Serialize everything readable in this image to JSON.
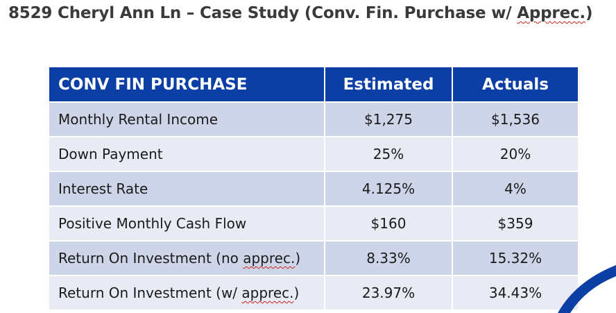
{
  "slide": {
    "title_main": "8529 Cheryl Ann Ln – Case Study (Conv. Fin. Purchase w/ ",
    "title_flagged": "Apprec.",
    "title_end": ")"
  },
  "table": {
    "headers": [
      "CONV FIN PURCHASE",
      "Estimated",
      "Actuals"
    ],
    "rows": [
      {
        "label": "Monthly Rental Income",
        "estimated": "$1,275",
        "actual": "$1,536"
      },
      {
        "label": "Down Payment",
        "estimated": "25%",
        "actual": "20%"
      },
      {
        "label": "Interest Rate",
        "estimated": "4.125%",
        "actual": "4%"
      },
      {
        "label": "Positive Monthly Cash Flow",
        "estimated": "$160",
        "actual": "$359"
      },
      {
        "label_pre": "Return On Investment (no ",
        "label_flagged": "apprec.",
        "label_post": ")",
        "estimated": "8.33%",
        "actual": "15.32%"
      },
      {
        "label_pre": "Return On Investment (w/ ",
        "label_flagged": "apprec.",
        "label_post": ")",
        "estimated": "23.97%",
        "actual": "34.43%"
      }
    ]
  },
  "colors": {
    "header_bg": "#0b3fa6",
    "row_dark": "#cfd5e8",
    "row_light": "#e9ebf4",
    "accent_swoosh": "#0b3fa6"
  }
}
